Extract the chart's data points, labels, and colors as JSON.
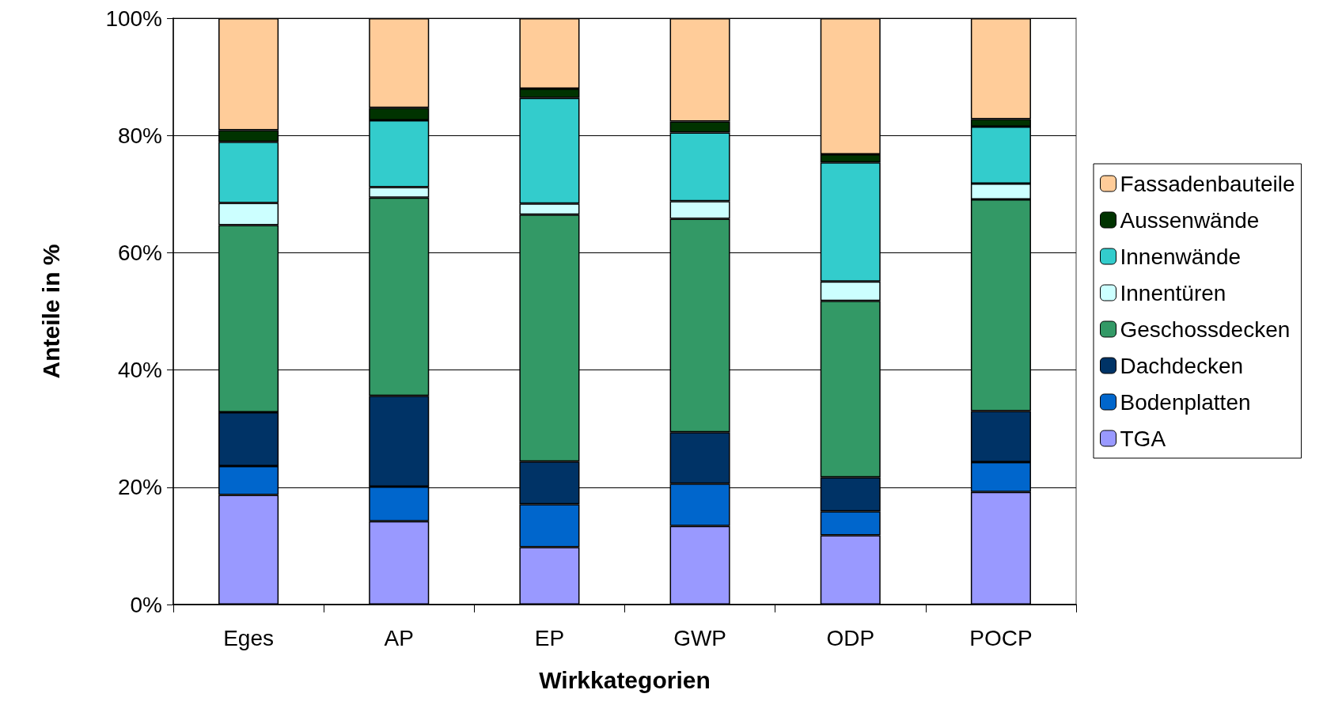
{
  "chart_data": {
    "type": "bar",
    "stacked": true,
    "xlabel": "Wirkkategorien",
    "ylabel": "Anteile in %",
    "categories": [
      "Eges",
      "AP",
      "EP",
      "GWP",
      "ODP",
      "POCP"
    ],
    "series": [
      {
        "name": "TGA",
        "color": "#9999ff",
        "values": [
          18.7,
          14.2,
          9.8,
          13.4,
          11.8,
          19.2
        ]
      },
      {
        "name": "Bodenplatten",
        "color": "#0066cc",
        "values": [
          4.9,
          5.9,
          7.3,
          7.2,
          4.1,
          5.1
        ]
      },
      {
        "name": "Dachdecken",
        "color": "#003366",
        "values": [
          9.2,
          15.5,
          7.3,
          8.8,
          5.8,
          8.7
        ]
      },
      {
        "name": "Geschossdecken",
        "color": "#339966",
        "values": [
          31.9,
          33.8,
          42.1,
          36.4,
          30.1,
          36.1
        ]
      },
      {
        "name": "Innentüren",
        "color": "#ccffff",
        "values": [
          3.8,
          1.8,
          1.9,
          3.0,
          3.3,
          2.7
        ]
      },
      {
        "name": "Innenwände",
        "color": "#33cccc",
        "values": [
          10.4,
          11.4,
          18.0,
          11.7,
          20.3,
          9.7
        ]
      },
      {
        "name": "Aussenwände",
        "color": "#003300",
        "values": [
          2.0,
          2.1,
          1.6,
          1.9,
          1.4,
          1.3
        ]
      },
      {
        "name": "Fassadenbauteile",
        "color": "#ffcc99",
        "values": [
          19.1,
          15.3,
          12.0,
          17.6,
          23.2,
          17.2
        ]
      }
    ],
    "ylim": [
      0,
      100
    ],
    "yticks": [
      {
        "value": 0,
        "label": "0%"
      },
      {
        "value": 20,
        "label": "20%"
      },
      {
        "value": 40,
        "label": "40%"
      },
      {
        "value": 60,
        "label": "60%"
      },
      {
        "value": 80,
        "label": "80%"
      },
      {
        "value": 100,
        "label": "100%"
      }
    ],
    "grid": "y",
    "legend": "right"
  }
}
